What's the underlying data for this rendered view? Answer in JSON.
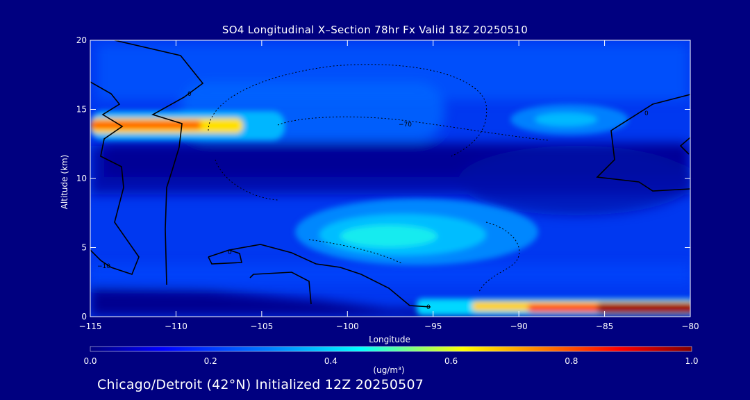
{
  "chart_data": {
    "type": "heatmap",
    "title": "SO4 Longitudinal X–Section 78hr  Fx Valid 18Z 20250510",
    "xlabel": "Longitude",
    "ylabel": "Altitude (km)",
    "xlim": [
      -115,
      -80
    ],
    "ylim": [
      0,
      20
    ],
    "x_ticks": [
      "−115",
      "−110",
      "−105",
      "−100",
      "−95",
      "−90",
      "−85",
      "−80"
    ],
    "y_ticks": [
      "0",
      "5",
      "10",
      "15",
      "20"
    ],
    "colorbar": {
      "range": [
        0.0,
        1.0
      ],
      "ticks": [
        "0.0",
        "0.2",
        "0.4",
        "0.6",
        "0.8",
        "1.0"
      ],
      "units": "(ug/m³)",
      "colors": [
        "#000080",
        "#0000ff",
        "#0080ff",
        "#00ffff",
        "#ffff00",
        "#ff8000",
        "#ff0000",
        "#800000"
      ]
    },
    "features": [
      {
        "lon": [
          -115,
          -105
        ],
        "alt": 13.8,
        "value": 0.7
      },
      {
        "lon": [
          -103,
          -91
        ],
        "alt": 5.8,
        "value": 0.32
      },
      {
        "lon": [
          -91,
          -81
        ],
        "alt": 14.5,
        "value": 0.3
      },
      {
        "lon": [
          -86,
          -80
        ],
        "alt": 0.5,
        "value": 1.0
      },
      {
        "lon": [
          -95,
          -86
        ],
        "alt": 0.5,
        "value": 0.6
      }
    ],
    "contour_labels": [
      "0",
      "0",
      "−10",
      "0",
      "−70",
      "0"
    ]
  },
  "footer": "Chicago/Detroit (42°N) Initialized 12Z 20250507",
  "colors": {
    "background": "#000080",
    "text": "#ffffff"
  }
}
